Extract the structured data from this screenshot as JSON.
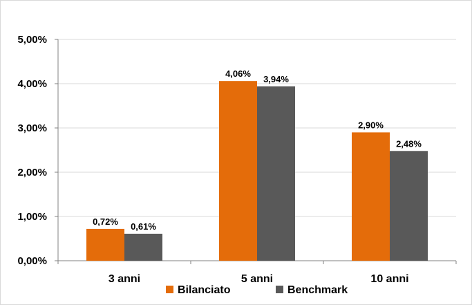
{
  "chart_data": {
    "type": "bar",
    "categories": [
      "3 anni",
      "5 anni",
      "10 anni"
    ],
    "series": [
      {
        "name": "Bilanciato",
        "values": [
          0.72,
          4.06,
          2.9
        ],
        "labels": [
          "0,72%",
          "4,06%",
          "2,90%"
        ],
        "color": "#E46C0A"
      },
      {
        "name": "Benchmark",
        "values": [
          0.61,
          3.94,
          2.48
        ],
        "labels": [
          "0,61%",
          "3,94%",
          "2,48%"
        ],
        "color": "#595959"
      }
    ],
    "ylim": [
      0,
      5
    ],
    "yticks": [
      0,
      1,
      2,
      3,
      4,
      5
    ],
    "ytick_labels": [
      "0,00%",
      "1,00%",
      "2,00%",
      "3,00%",
      "4,00%",
      "5,00%"
    ],
    "grid": true,
    "legend": "bottom",
    "title": "",
    "xlabel": "",
    "ylabel": ""
  }
}
